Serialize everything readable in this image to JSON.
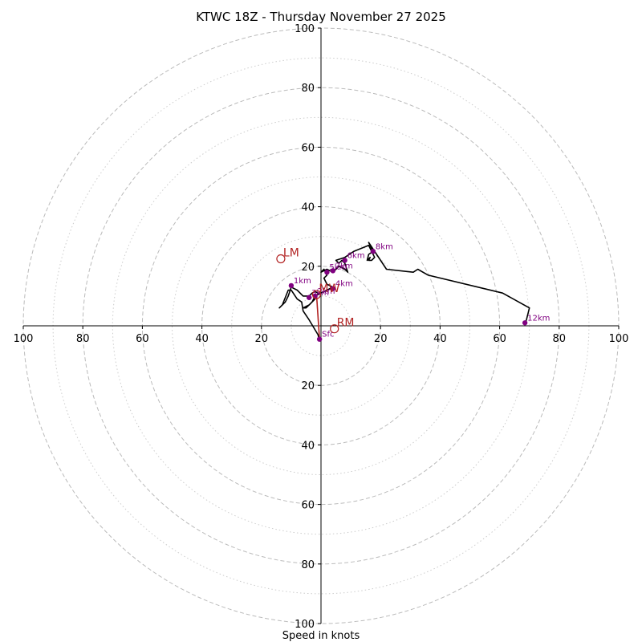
{
  "chart_data": {
    "type": "hodograph",
    "title": "KTWC 18Z - Thursday November 27 2025",
    "xlabel": "Speed in knots",
    "units": "knots",
    "range": [
      -100,
      100
    ],
    "ring_major": [
      20,
      40,
      60,
      80,
      100
    ],
    "ring_minor": [
      10,
      30,
      50,
      70,
      90
    ],
    "tick_labels_right": [
      "20",
      "40",
      "60",
      "80",
      "100"
    ],
    "tick_labels_left": [
      "100",
      "80",
      "60",
      "40",
      "20"
    ],
    "tick_labels_up": [
      "20",
      "40",
      "60",
      "80",
      "100"
    ],
    "tick_labels_down": [
      "20",
      "40",
      "60",
      "80",
      "100"
    ],
    "trace_color": "#000000",
    "height_marker_color": "#800080",
    "motion_color": "#b22222",
    "grid_color": "#bbbbbb",
    "trace": [
      {
        "u": -0.5,
        "v": -5
      },
      {
        "u": -1,
        "v": -3
      },
      {
        "u": -4,
        "v": 2
      },
      {
        "u": -6,
        "v": 5
      },
      {
        "u": -6.5,
        "v": 8
      },
      {
        "u": -8,
        "v": 9
      },
      {
        "u": -10,
        "v": 12
      },
      {
        "u": -11,
        "v": 12
      },
      {
        "u": -13,
        "v": 7
      },
      {
        "u": -14,
        "v": 6
      },
      {
        "u": -12,
        "v": 8
      },
      {
        "u": -11,
        "v": 10
      },
      {
        "u": -10,
        "v": 13
      },
      {
        "u": -8,
        "v": 12
      },
      {
        "u": -6,
        "v": 10
      },
      {
        "u": -4,
        "v": 10
      },
      {
        "u": -3,
        "v": 11
      },
      {
        "u": -2,
        "v": 11.5
      },
      {
        "u": -1,
        "v": 11
      },
      {
        "u": -2,
        "v": 9
      },
      {
        "u": -4,
        "v": 7
      },
      {
        "u": -6,
        "v": 6
      },
      {
        "u": -5,
        "v": 6
      },
      {
        "u": -3,
        "v": 8
      },
      {
        "u": -2,
        "v": 10
      },
      {
        "u": 0,
        "v": 11
      },
      {
        "u": 2,
        "v": 12
      },
      {
        "u": 4,
        "v": 13
      },
      {
        "u": 2,
        "v": 14
      },
      {
        "u": 1,
        "v": 16
      },
      {
        "u": 2,
        "v": 17
      },
      {
        "u": 1,
        "v": 19
      },
      {
        "u": 0,
        "v": 18
      },
      {
        "u": 2,
        "v": 19
      },
      {
        "u": 4,
        "v": 18
      },
      {
        "u": 5,
        "v": 19
      },
      {
        "u": 6,
        "v": 20
      },
      {
        "u": 8,
        "v": 19
      },
      {
        "u": 9,
        "v": 18
      },
      {
        "u": 8,
        "v": 21
      },
      {
        "u": 7,
        "v": 22
      },
      {
        "u": 6,
        "v": 21
      },
      {
        "u": 5,
        "v": 22
      },
      {
        "u": 8,
        "v": 23
      },
      {
        "u": 11,
        "v": 25
      },
      {
        "u": 16,
        "v": 27
      },
      {
        "u": 17,
        "v": 25
      },
      {
        "u": 18,
        "v": 23
      },
      {
        "u": 17,
        "v": 22
      },
      {
        "u": 16,
        "v": 22
      },
      {
        "u": 16.5,
        "v": 23
      },
      {
        "u": 15.5,
        "v": 22
      },
      {
        "u": 16,
        "v": 24
      },
      {
        "u": 17.5,
        "v": 25
      },
      {
        "u": 16,
        "v": 28
      },
      {
        "u": 22,
        "v": 19
      },
      {
        "u": 31,
        "v": 18
      },
      {
        "u": 32.5,
        "v": 19
      },
      {
        "u": 36,
        "v": 17
      },
      {
        "u": 61,
        "v": 11
      },
      {
        "u": 70,
        "v": 6
      },
      {
        "u": 69,
        "v": 2
      },
      {
        "u": 68.5,
        "v": 1
      }
    ],
    "height_markers": [
      {
        "label": "Sfc",
        "u": -0.5,
        "v": -4.5
      },
      {
        "label": "1km",
        "u": -10,
        "v": 13.5
      },
      {
        "label": "2km",
        "u": -2,
        "v": 10
      },
      {
        "label": "3km",
        "u": -4,
        "v": 9.5
      },
      {
        "label": "4km",
        "u": 4,
        "v": 12.5
      },
      {
        "label": "5km",
        "u": 2,
        "v": 18
      },
      {
        "label": "6km",
        "u": 8,
        "v": 22
      },
      {
        "label": "7km",
        "u": 4,
        "v": 18.5
      },
      {
        "label": "8km",
        "u": 17.5,
        "v": 25
      },
      {
        "label": "12km",
        "u": 68.5,
        "v": 1
      }
    ],
    "storm_motion": [
      {
        "label": "LM",
        "u": -13.5,
        "v": 22.5
      },
      {
        "label": "MW",
        "u": -1.5,
        "v": 10.5
      },
      {
        "label": "RM",
        "u": 4.5,
        "v": -1
      }
    ],
    "shear_vector": {
      "from": "Sfc",
      "to": "MW"
    }
  }
}
